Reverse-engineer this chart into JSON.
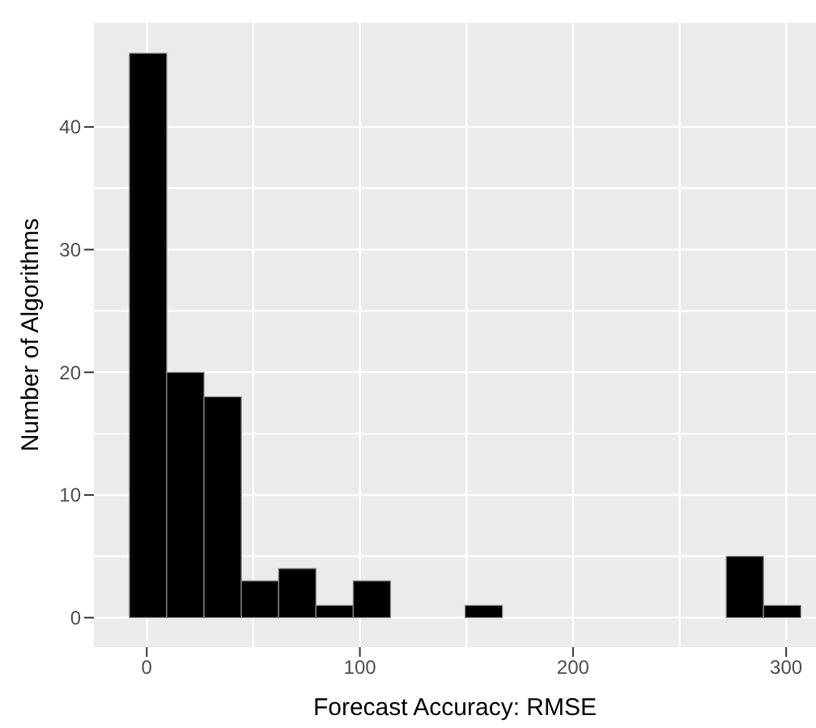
{
  "chart_data": {
    "type": "histogram",
    "xlabel": "Forecast Accuracy: RMSE",
    "ylabel": "Number of Algorithms",
    "bins": [
      -8.5,
      9,
      26.5,
      44,
      61.5,
      79,
      96.5,
      114,
      131.5,
      149,
      166.5,
      184,
      201.5,
      219,
      236.5,
      254,
      271.5,
      289,
      306.5
    ],
    "values": [
      46,
      20,
      18,
      3,
      4,
      1,
      3,
      0,
      0,
      1,
      0,
      0,
      0,
      0,
      0,
      0,
      5,
      1
    ],
    "color": "#000000",
    "xlim": [
      -24.8,
      314
    ],
    "xticks": [
      0,
      100,
      200,
      300
    ],
    "ylim": [
      -2.4,
      48.5
    ],
    "yticks": [
      0,
      10,
      20,
      30,
      40
    ],
    "grid": true
  }
}
